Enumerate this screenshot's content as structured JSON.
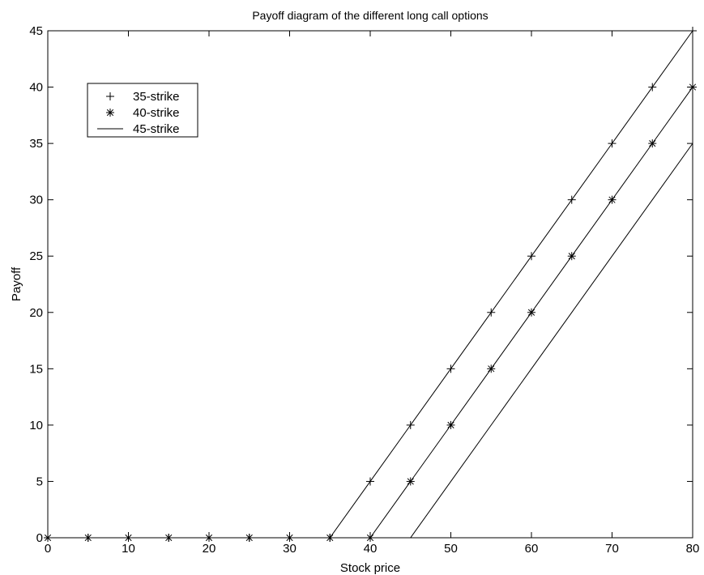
{
  "chart_data": {
    "type": "line",
    "title": "Payoff diagram of the different long call options",
    "xlabel": "Stock price",
    "ylabel": "Payoff",
    "xlim": [
      0,
      80
    ],
    "ylim": [
      0,
      45
    ],
    "xticks": [
      0,
      10,
      20,
      30,
      40,
      50,
      60,
      70,
      80
    ],
    "yticks": [
      0,
      5,
      10,
      15,
      20,
      25,
      30,
      35,
      40,
      45
    ],
    "grid": false,
    "legend_position": "top-left",
    "series": [
      {
        "name": "35-strike",
        "marker": "plus",
        "line": true,
        "x": [
          0,
          5,
          10,
          15,
          20,
          25,
          30,
          35,
          40,
          45,
          50,
          55,
          60,
          65,
          70,
          75,
          80
        ],
        "values": [
          0,
          0,
          0,
          0,
          0,
          0,
          0,
          0,
          5,
          10,
          15,
          20,
          25,
          30,
          35,
          40,
          45
        ]
      },
      {
        "name": "40-strike",
        "marker": "asterisk",
        "line": true,
        "x": [
          0,
          5,
          10,
          15,
          20,
          25,
          30,
          35,
          40,
          45,
          50,
          55,
          60,
          65,
          70,
          75,
          80
        ],
        "values": [
          0,
          0,
          0,
          0,
          0,
          0,
          0,
          0,
          0,
          5,
          10,
          15,
          20,
          25,
          30,
          35,
          40
        ]
      },
      {
        "name": "45-strike",
        "marker": "none",
        "line": true,
        "x": [
          0,
          5,
          10,
          15,
          20,
          25,
          30,
          35,
          40,
          45,
          50,
          55,
          60,
          65,
          70,
          75,
          80
        ],
        "values": [
          0,
          0,
          0,
          0,
          0,
          0,
          0,
          0,
          0,
          0,
          5,
          10,
          15,
          20,
          25,
          30,
          35
        ]
      }
    ]
  }
}
